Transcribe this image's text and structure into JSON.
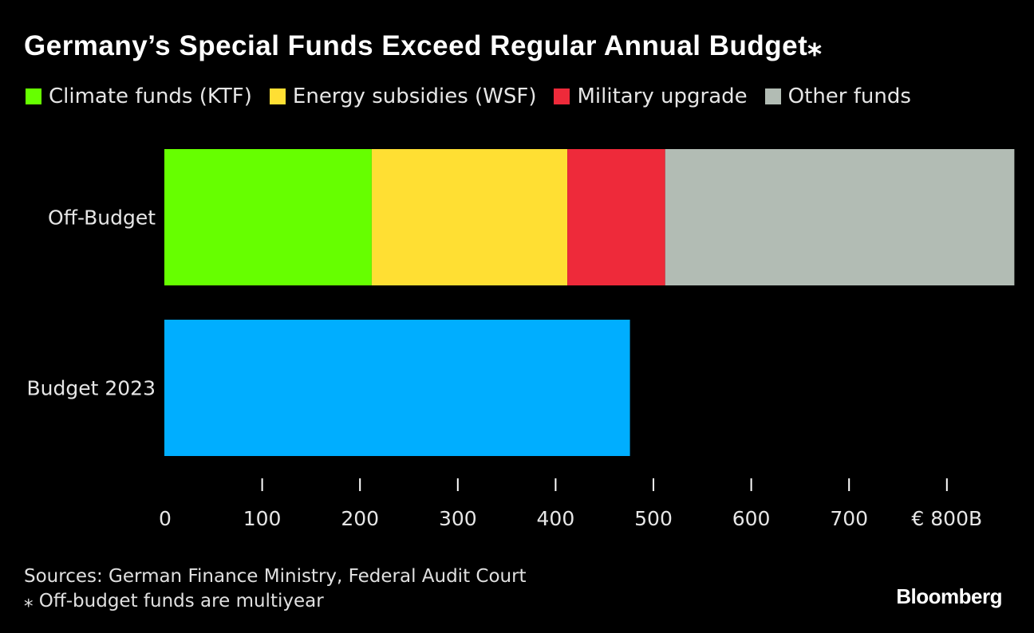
{
  "chart_data": {
    "type": "bar",
    "orientation": "horizontal",
    "stacked": true,
    "title": "Germany’s Special Funds Exceed Regular Annual Budget⁎",
    "categories": [
      "Off-Budget",
      "Budget 2023"
    ],
    "series": [
      {
        "name": "Climate funds (KTF)",
        "color": "#66ff00",
        "values": [
          212,
          0
        ]
      },
      {
        "name": "Energy subsidies (WSF)",
        "color": "#ffdf33",
        "values": [
          200,
          0
        ]
      },
      {
        "name": "Military upgrade",
        "color": "#ee2a3a",
        "values": [
          100,
          0
        ]
      },
      {
        "name": "Other funds",
        "color": "#b2bcb4",
        "values": [
          357,
          0
        ]
      },
      {
        "name": "Budget 2023",
        "color": "#00aeff",
        "values": [
          0,
          476
        ]
      }
    ],
    "xlim": [
      0,
      870
    ],
    "xticks": [
      0,
      100,
      200,
      300,
      400,
      500,
      600,
      700,
      800
    ],
    "xtick_labels": [
      "0",
      "100",
      "200",
      "300",
      "400",
      "500",
      "600",
      "700",
      "€ 800B"
    ],
    "xlabel": "",
    "ylabel": "",
    "legend_position": "top"
  },
  "legend": [
    {
      "label": "Climate funds (KTF)",
      "color": "#66ff00"
    },
    {
      "label": "Energy subsidies (WSF)",
      "color": "#ffdf33"
    },
    {
      "label": "Military upgrade",
      "color": "#ee2a3a"
    },
    {
      "label": "Other funds",
      "color": "#b2bcb4"
    }
  ],
  "footer": {
    "sources": "Sources: German Finance Ministry, Federal Audit Court",
    "note": "⁎ Off-budget funds are multiyear",
    "brand": "Bloomberg"
  }
}
